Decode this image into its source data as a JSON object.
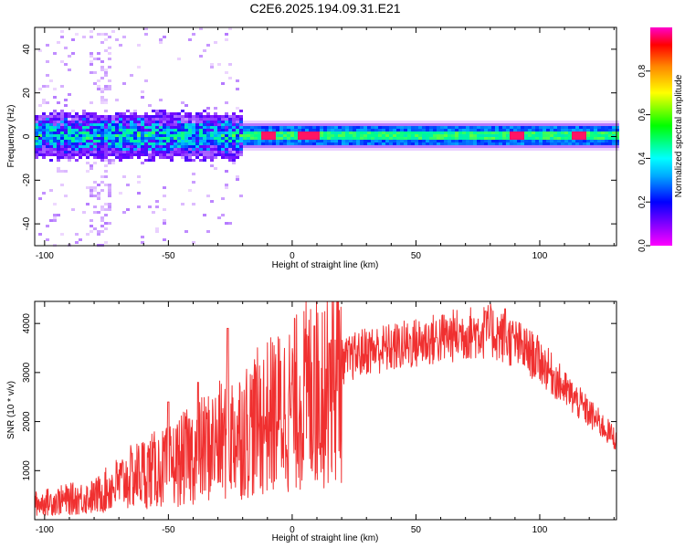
{
  "title": "C2E6.2025.194.09.31.E21",
  "chart_data": [
    {
      "type": "heatmap",
      "xlabel": "Height of straight line (km)",
      "ylabel": "Frequency (Hz)",
      "xlim": [
        -104,
        131
      ],
      "ylim": [
        -50,
        50
      ],
      "xticks": [
        -100,
        -50,
        0,
        50,
        100
      ],
      "yticks": [
        -40,
        -20,
        0,
        20,
        40
      ],
      "colorbar": {
        "label": "Normalized spectral amplitude",
        "range": [
          0.0,
          1.0
        ],
        "ticks": [
          0.0,
          0.2,
          0.4,
          0.6,
          0.8
        ],
        "colors": [
          "#ff00ff",
          "#0000ff",
          "#00ffff",
          "#00ff00",
          "#ffff00",
          "#ff0000",
          "#ff00cc"
        ]
      },
      "band": {
        "center_hz": 1,
        "narrow_from_km": -20,
        "peak_value": 0.95,
        "hotspots_km": [
          -10,
          5,
          8,
          90,
          115
        ]
      },
      "grid": false
    },
    {
      "type": "line",
      "xlabel": "Height of straight line (km)",
      "ylabel": "SNR (10 * v/v)",
      "xlim": [
        -104,
        131
      ],
      "ylim": [
        0,
        4450
      ],
      "xticks": [
        -100,
        -50,
        0,
        50,
        100
      ],
      "yticks": [
        1000,
        2000,
        3000,
        4000
      ],
      "color": "#f03030",
      "envelope": [
        [
          -104,
          350
        ],
        [
          -90,
          450
        ],
        [
          -80,
          500
        ],
        [
          -70,
          800
        ],
        [
          -60,
          1050
        ],
        [
          -50,
          1150
        ],
        [
          -40,
          1450
        ],
        [
          -30,
          1700
        ],
        [
          -20,
          1950
        ],
        [
          -10,
          2250
        ],
        [
          0,
          2500
        ],
        [
          10,
          2900
        ],
        [
          20,
          3250
        ],
        [
          30,
          3500
        ],
        [
          40,
          3550
        ],
        [
          50,
          3650
        ],
        [
          60,
          3750
        ],
        [
          70,
          3850
        ],
        [
          80,
          3900
        ],
        [
          90,
          3650
        ],
        [
          100,
          3300
        ],
        [
          110,
          2700
        ],
        [
          120,
          2200
        ],
        [
          131,
          1650
        ]
      ],
      "spikes": [
        [
          -26,
          3900
        ],
        [
          -38,
          2800
        ],
        [
          -50,
          2400
        ],
        [
          9,
          3950
        ],
        [
          15,
          3600
        ],
        [
          86,
          4300
        ],
        [
          78,
          4250
        ]
      ],
      "grid": false
    }
  ]
}
